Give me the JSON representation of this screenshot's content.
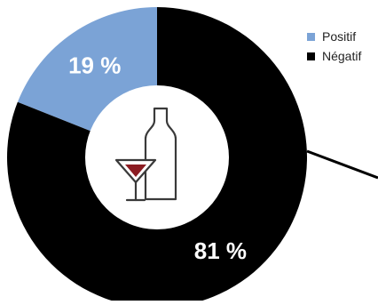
{
  "chart_data": {
    "type": "pie",
    "donut": true,
    "categories": [
      "Positif",
      "Négatif"
    ],
    "values": [
      19,
      81
    ],
    "data_labels": [
      "19 %",
      "81 %"
    ],
    "colors": [
      "#7ba3d6",
      "#000000"
    ],
    "legend_position": "top-right",
    "center_icon": "wine-glass-and-bottle-icon",
    "icon_color": "#3a3a3a",
    "icon_accent_color": "#8b1c22"
  }
}
